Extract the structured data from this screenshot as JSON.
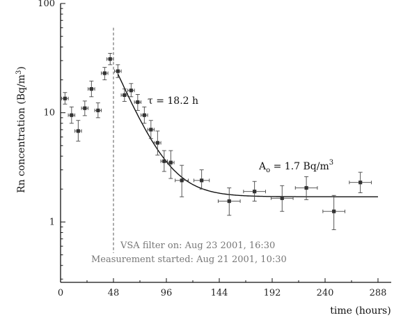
{
  "chart_data": {
    "type": "scatter",
    "xlabel": "time  (hours)",
    "ylabel_main": "Rn concentration  (Bq/m",
    "ylabel_sup": "3",
    "ylabel_close": ")",
    "xlim": [
      0,
      300
    ],
    "ylim": [
      0.28,
      100
    ],
    "yscale": "log",
    "x_ticks": [
      0,
      48,
      96,
      144,
      192,
      240,
      288
    ],
    "y_ticks": [
      1,
      10,
      100
    ],
    "grid": false,
    "vline_x": 48,
    "series": [
      {
        "points": [
          {
            "x": 4,
            "y": 13.5,
            "xerr": 3,
            "yerr_lo": 1.5,
            "yerr_hi": 1.8
          },
          {
            "x": 10,
            "y": 9.5,
            "xerr": 3,
            "yerr_lo": 1.5,
            "yerr_hi": 1.8
          },
          {
            "x": 16,
            "y": 6.8,
            "xerr": 3,
            "yerr_lo": 1.3,
            "yerr_hi": 1.7
          },
          {
            "x": 22,
            "y": 11.0,
            "xerr": 3,
            "yerr_lo": 1.6,
            "yerr_hi": 1.8
          },
          {
            "x": 28,
            "y": 16.5,
            "xerr": 3,
            "yerr_lo": 2.5,
            "yerr_hi": 3.0
          },
          {
            "x": 34,
            "y": 10.5,
            "xerr": 3,
            "yerr_lo": 1.5,
            "yerr_hi": 1.8
          },
          {
            "x": 40,
            "y": 23.0,
            "xerr": 3,
            "yerr_lo": 3.0,
            "yerr_hi": 3.0
          },
          {
            "x": 45,
            "y": 31.0,
            "xerr": 3,
            "yerr_lo": 3.5,
            "yerr_hi": 4.0
          },
          {
            "x": 52,
            "y": 24.0,
            "xerr": 3,
            "yerr_lo": 3.0,
            "yerr_hi": 3.5
          },
          {
            "x": 58,
            "y": 14.5,
            "xerr": 3,
            "yerr_lo": 1.8,
            "yerr_hi": 2.0
          },
          {
            "x": 64,
            "y": 16.0,
            "xerr": 3,
            "yerr_lo": 2.0,
            "yerr_hi": 2.5
          },
          {
            "x": 70,
            "y": 12.5,
            "xerr": 3,
            "yerr_lo": 2.0,
            "yerr_hi": 2.2
          },
          {
            "x": 76,
            "y": 9.5,
            "xerr": 3,
            "yerr_lo": 1.5,
            "yerr_hi": 1.8
          },
          {
            "x": 82,
            "y": 7.0,
            "xerr": 3,
            "yerr_lo": 1.2,
            "yerr_hi": 1.5
          },
          {
            "x": 88,
            "y": 5.3,
            "xerr": 3,
            "yerr_lo": 1.2,
            "yerr_hi": 1.5
          },
          {
            "x": 94,
            "y": 3.6,
            "xerr": 3,
            "yerr_lo": 0.7,
            "yerr_hi": 0.9
          },
          {
            "x": 100,
            "y": 3.5,
            "xerr": 3,
            "yerr_lo": 1.0,
            "yerr_hi": 1.0
          },
          {
            "x": 110,
            "y": 2.4,
            "xerr": 6,
            "yerr_lo": 0.7,
            "yerr_hi": 0.9
          },
          {
            "x": 128,
            "y": 2.4,
            "xerr": 7,
            "yerr_lo": 0.4,
            "yerr_hi": 0.6
          },
          {
            "x": 153,
            "y": 1.55,
            "xerr": 10,
            "yerr_lo": 0.4,
            "yerr_hi": 0.5
          },
          {
            "x": 176,
            "y": 1.9,
            "xerr": 10,
            "yerr_lo": 0.35,
            "yerr_hi": 0.45
          },
          {
            "x": 201,
            "y": 1.65,
            "xerr": 10,
            "yerr_lo": 0.4,
            "yerr_hi": 0.5
          },
          {
            "x": 223,
            "y": 2.05,
            "xerr": 10,
            "yerr_lo": 0.45,
            "yerr_hi": 0.55
          },
          {
            "x": 248,
            "y": 1.25,
            "xerr": 10,
            "yerr_lo": 0.4,
            "yerr_hi": 0.5
          },
          {
            "x": 272,
            "y": 2.3,
            "xerr": 10,
            "yerr_lo": 0.45,
            "yerr_hi": 0.55
          }
        ]
      }
    ],
    "fit": {
      "x_start": 52,
      "x_end": 288,
      "A0": 1.7,
      "amplitude": 21,
      "tau_hours": 18.2
    },
    "annotations": {
      "tau": "τ = 18.2 h",
      "a0_main": "A",
      "a0_sub": "o",
      "a0_value": " = 1.7  Bq/m",
      "a0_sup": "3",
      "filter": "VSA filter on: Aug 23 2001, 16:30",
      "measurement": "Measurement started: Aug 21 2001, 10:30"
    }
  }
}
